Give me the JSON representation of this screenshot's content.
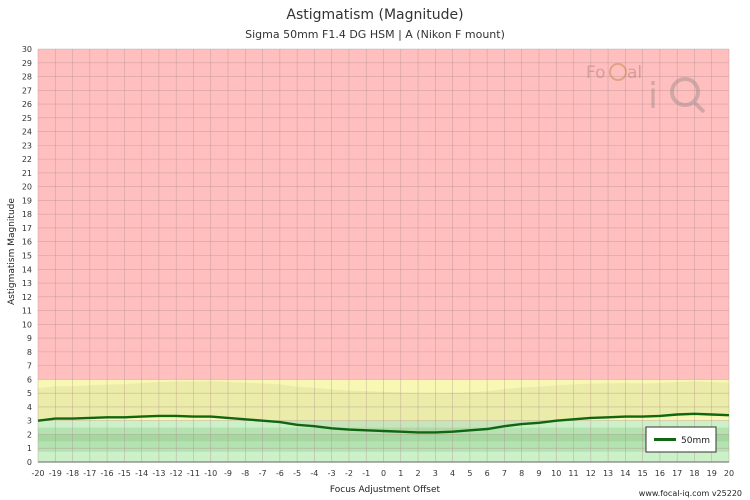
{
  "title": "Astigmatism (Magnitude)",
  "subtitle": "Sigma 50mm F1.4 DG HSM | A (Nikon F mount)",
  "footer": "www.focal-iq.com  v25220",
  "logo_text": "FoCal iQ",
  "colors": {
    "red_zone": "#ffbfbf",
    "yellow_zone": "#f8f8b4",
    "green_zone_light": "#ccf0c8",
    "green_zone_mid": "#b4e2b0",
    "green_zone_dark": "#a4d8a0",
    "series_line": "#116611",
    "grid": "#b09090"
  },
  "chart_data": {
    "type": "line",
    "title": "Astigmatism (Magnitude)",
    "subtitle": "Sigma 50mm F1.4 DG HSM | A (Nikon F mount)",
    "xlabel": "Focus Adjustment Offset",
    "ylabel": "Astigmatism Magnitude",
    "xlim": [
      -20,
      20
    ],
    "ylim": [
      0,
      30
    ],
    "xticks": [
      -20,
      -19,
      -18,
      -17,
      -16,
      -15,
      -14,
      -13,
      -12,
      -11,
      -10,
      -9,
      -8,
      -7,
      -6,
      -5,
      -4,
      -3,
      -2,
      -1,
      0,
      1,
      2,
      3,
      4,
      5,
      6,
      7,
      8,
      9,
      10,
      11,
      12,
      13,
      14,
      15,
      16,
      17,
      18,
      19,
      20
    ],
    "yticks": [
      0,
      1,
      2,
      3,
      4,
      5,
      6,
      7,
      8,
      9,
      10,
      11,
      12,
      13,
      14,
      15,
      16,
      17,
      18,
      19,
      20,
      21,
      22,
      23,
      24,
      25,
      26,
      27,
      28,
      29,
      30
    ],
    "grid": true,
    "legend_position": "bottom-right",
    "series": [
      {
        "name": "50mm",
        "x": [
          -20,
          -19,
          -18,
          -17,
          -16,
          -15,
          -14,
          -13,
          -12,
          -11,
          -10,
          -9,
          -8,
          -7,
          -6,
          -5,
          -4,
          -3,
          -2,
          -1,
          0,
          1,
          2,
          3,
          4,
          5,
          6,
          7,
          8,
          9,
          10,
          11,
          12,
          13,
          14,
          15,
          16,
          17,
          18,
          19,
          20
        ],
        "y": [
          3.0,
          3.15,
          3.15,
          3.2,
          3.25,
          3.25,
          3.3,
          3.35,
          3.35,
          3.3,
          3.3,
          3.2,
          3.1,
          3.0,
          2.9,
          2.7,
          2.6,
          2.45,
          2.35,
          2.3,
          2.25,
          2.2,
          2.15,
          2.15,
          2.2,
          2.3,
          2.4,
          2.6,
          2.75,
          2.85,
          3.0,
          3.1,
          3.2,
          3.25,
          3.3,
          3.3,
          3.35,
          3.45,
          3.5,
          3.45,
          3.4
        ]
      }
    ],
    "zones": [
      {
        "name": "red",
        "from": 6.0,
        "to": 30
      },
      {
        "name": "yellow",
        "from": 3.0,
        "to": 6.0
      },
      {
        "name": "green_light",
        "from": 0,
        "to": 3.0
      },
      {
        "name": "green_mid",
        "from": 0.75,
        "to": 2.5
      },
      {
        "name": "green_dark",
        "from": 1.5,
        "to": 2.0
      }
    ]
  }
}
